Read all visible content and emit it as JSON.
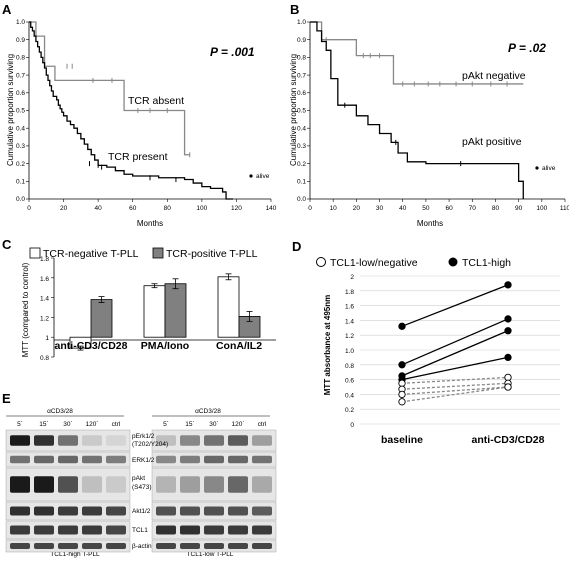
{
  "panels": {
    "A": "A",
    "B": "B",
    "C": "C",
    "D": "D",
    "E": "E"
  },
  "chart_data": [
    {
      "id": "A",
      "type": "line",
      "ylabel": "Cumulative proportion surviving",
      "xlabel": "Months",
      "xlim": [
        0,
        140
      ],
      "ylim": [
        0,
        1.0
      ],
      "xticks": [
        "0",
        "20",
        "40",
        "60",
        "80",
        "100",
        "120",
        "140"
      ],
      "yticks": [
        "0.0",
        "0.1",
        "0.2",
        "0.3",
        "0.4",
        "0.5",
        "0.6",
        "0.7",
        "0.8",
        "0.9",
        "1.0"
      ],
      "p_value": "P = .001",
      "annotations": [
        "TCR absent",
        "TCR present"
      ],
      "legend": "alive",
      "series": [
        {
          "name": "TCR absent",
          "color": "#888888",
          "x": [
            0,
            4,
            4,
            9,
            9,
            15,
            15,
            55,
            55,
            90,
            90,
            93
          ],
          "y": [
            1.0,
            1.0,
            0.92,
            0.92,
            0.75,
            0.75,
            0.67,
            0.67,
            0.5,
            0.5,
            0.25,
            0.25
          ],
          "censored": [
            [
              22,
              0.75
            ],
            [
              25,
              0.75
            ],
            [
              37,
              0.67
            ],
            [
              48,
              0.67
            ],
            [
              63,
              0.5
            ],
            [
              70,
              0.5
            ],
            [
              80,
              0.5
            ],
            [
              93,
              0.25
            ]
          ]
        },
        {
          "name": "TCR present",
          "color": "#000000",
          "x": [
            0,
            1,
            2,
            3,
            4,
            5,
            6,
            7,
            8,
            9,
            10,
            11,
            12,
            13,
            14,
            16,
            17,
            18,
            19,
            20,
            22,
            24,
            26,
            28,
            30,
            32,
            34,
            36,
            38,
            40,
            45,
            50,
            55,
            60,
            75,
            90,
            95,
            100,
            105,
            112,
            114,
            114,
            118
          ],
          "y": [
            1.0,
            0.97,
            0.95,
            0.92,
            0.89,
            0.86,
            0.83,
            0.8,
            0.77,
            0.74,
            0.7,
            0.67,
            0.64,
            0.61,
            0.58,
            0.56,
            0.53,
            0.51,
            0.49,
            0.47,
            0.44,
            0.42,
            0.4,
            0.37,
            0.34,
            0.31,
            0.28,
            0.25,
            0.22,
            0.19,
            0.18,
            0.16,
            0.14,
            0.13,
            0.12,
            0.11,
            0.09,
            0.07,
            0.06,
            0.04,
            0.04,
            0.0,
            0.0
          ],
          "censored": [
            [
              35,
              0.2
            ],
            [
              40,
              0.19
            ],
            [
              42,
              0.18
            ],
            [
              70,
              0.12
            ],
            [
              85,
              0.11
            ]
          ]
        }
      ]
    },
    {
      "id": "B",
      "type": "line",
      "ylabel": "Cumulative proportion surviving",
      "xlabel": "Months",
      "xlim": [
        0,
        110
      ],
      "ylim": [
        0,
        1.0
      ],
      "xticks": [
        "0",
        "10",
        "20",
        "30",
        "40",
        "50",
        "60",
        "70",
        "80",
        "90",
        "100",
        "110"
      ],
      "yticks": [
        "0.0",
        "0.1",
        "0.2",
        "0.3",
        "0.4",
        "0.5",
        "0.6",
        "0.7",
        "0.8",
        "0.9",
        "1.0"
      ],
      "p_value": "P = .02",
      "annotations": [
        "pAkt negative",
        "pAkt positive"
      ],
      "legend": "alive",
      "series": [
        {
          "name": "pAkt negative",
          "color": "#888888",
          "x": [
            0,
            5,
            5,
            20,
            20,
            36,
            36,
            92
          ],
          "y": [
            1.0,
            1.0,
            0.9,
            0.9,
            0.81,
            0.81,
            0.65,
            0.65
          ],
          "censored": [
            [
              7,
              0.9
            ],
            [
              23,
              0.81
            ],
            [
              26,
              0.81
            ],
            [
              30,
              0.81
            ],
            [
              40,
              0.65
            ],
            [
              45,
              0.65
            ],
            [
              51,
              0.65
            ],
            [
              56,
              0.65
            ],
            [
              63,
              0.65
            ],
            [
              70,
              0.65
            ],
            [
              78,
              0.65
            ],
            [
              85,
              0.65
            ]
          ]
        },
        {
          "name": "pAkt positive",
          "color": "#000000",
          "x": [
            0,
            3,
            3,
            5,
            5,
            7,
            7,
            9,
            9,
            12,
            12,
            14,
            14,
            20,
            20,
            25,
            25,
            30,
            30,
            35,
            35,
            38,
            38,
            42,
            42,
            45,
            45,
            50,
            50,
            58,
            58,
            90,
            90,
            92,
            92
          ],
          "y": [
            1.0,
            1.0,
            0.95,
            0.95,
            0.89,
            0.89,
            0.84,
            0.84,
            0.68,
            0.68,
            0.53,
            0.53,
            0.53,
            0.53,
            0.47,
            0.47,
            0.42,
            0.42,
            0.37,
            0.37,
            0.32,
            0.32,
            0.26,
            0.26,
            0.21,
            0.21,
            0.21,
            0.21,
            0.2,
            0.2,
            0.2,
            0.2,
            0.1,
            0.1,
            0.0
          ],
          "censored": [
            [
              15,
              0.53
            ],
            [
              37,
              0.32
            ],
            [
              65,
              0.2
            ]
          ]
        }
      ]
    },
    {
      "id": "C",
      "type": "bar",
      "ylabel": "MTT (compared to control)",
      "ylim": [
        0.8,
        1.8
      ],
      "yticks": [
        "0.8",
        "1",
        "1.2",
        "1.4",
        "1.6",
        "1.8"
      ],
      "categories": [
        "anti-CD3/CD28",
        "PMA/Iono",
        "ConA/IL2"
      ],
      "series": [
        {
          "name": "TCR-negative T-PLL",
          "color": "#ffffff",
          "values": [
            0.89,
            1.52,
            1.61
          ],
          "errors": [
            0.02,
            0.02,
            0.03
          ]
        },
        {
          "name": "TCR-positive T-PLL",
          "color": "#808080",
          "values": [
            1.38,
            1.54,
            1.21
          ],
          "errors": [
            0.03,
            0.05,
            0.05
          ]
        }
      ]
    },
    {
      "id": "D",
      "type": "line",
      "ylabel": "MTT absorbance at 495nm",
      "ylim": [
        0,
        2
      ],
      "yticks": [
        "0",
        "0.2",
        "0.4",
        "0.6",
        "0.8",
        "1.0",
        "1.2",
        "1.4",
        "1.6",
        "1.8",
        "2"
      ],
      "categories": [
        "baseline",
        "anti-CD3/CD28"
      ],
      "legend": [
        "TCL1-low/negative",
        "TCL1-high"
      ],
      "series": [
        {
          "name": "TCL1-high",
          "values": [
            1.32,
            1.88
          ],
          "style": "solid"
        },
        {
          "name": "TCL1-high",
          "values": [
            0.8,
            1.42
          ],
          "style": "solid"
        },
        {
          "name": "TCL1-high",
          "values": [
            0.65,
            1.26
          ],
          "style": "solid"
        },
        {
          "name": "TCL1-high",
          "values": [
            0.6,
            0.9
          ],
          "style": "solid"
        },
        {
          "name": "TCL1-low/negative",
          "values": [
            0.55,
            0.63
          ],
          "style": "dashed"
        },
        {
          "name": "TCL1-low/negative",
          "values": [
            0.47,
            0.55
          ],
          "style": "dashed"
        },
        {
          "name": "TCL1-low/negative",
          "values": [
            0.4,
            0.5
          ],
          "style": "dashed"
        },
        {
          "name": "TCL1-low/negative",
          "values": [
            0.3,
            0.5
          ],
          "style": "dashed"
        }
      ]
    }
  ],
  "blot": {
    "left_treatment": "αCD3/28",
    "right_treatment": "αCD3/28",
    "lanes": [
      "5´",
      "15´",
      "30´",
      "120´",
      "ctrl"
    ],
    "row_labels": [
      "pErk1/2",
      "(T202/Y204)",
      "ERK1/2",
      "pAkt",
      "(S473)",
      "Akt1/2",
      "TCL1",
      "β-actin"
    ],
    "left_caption": "TCL1-high T-PLL",
    "right_caption": "TCL1-low T-PLL",
    "left_intensity": [
      [
        0.95,
        0.85,
        0.55,
        0.15,
        0.1
      ],
      [
        0.55,
        0.6,
        0.6,
        0.55,
        0.5
      ],
      [
        0.95,
        0.95,
        0.7,
        0.2,
        0.15
      ],
      [
        0.85,
        0.85,
        0.8,
        0.8,
        0.75
      ],
      [
        0.8,
        0.8,
        0.8,
        0.8,
        0.75
      ],
      [
        0.75,
        0.75,
        0.75,
        0.75,
        0.75
      ]
    ],
    "right_intensity": [
      [
        0.2,
        0.45,
        0.55,
        0.65,
        0.35
      ],
      [
        0.45,
        0.5,
        0.6,
        0.6,
        0.55
      ],
      [
        0.25,
        0.35,
        0.45,
        0.6,
        0.3
      ],
      [
        0.7,
        0.7,
        0.7,
        0.7,
        0.65
      ],
      [
        0.85,
        0.85,
        0.8,
        0.8,
        0.8
      ],
      [
        0.75,
        0.75,
        0.75,
        0.75,
        0.75
      ]
    ]
  }
}
